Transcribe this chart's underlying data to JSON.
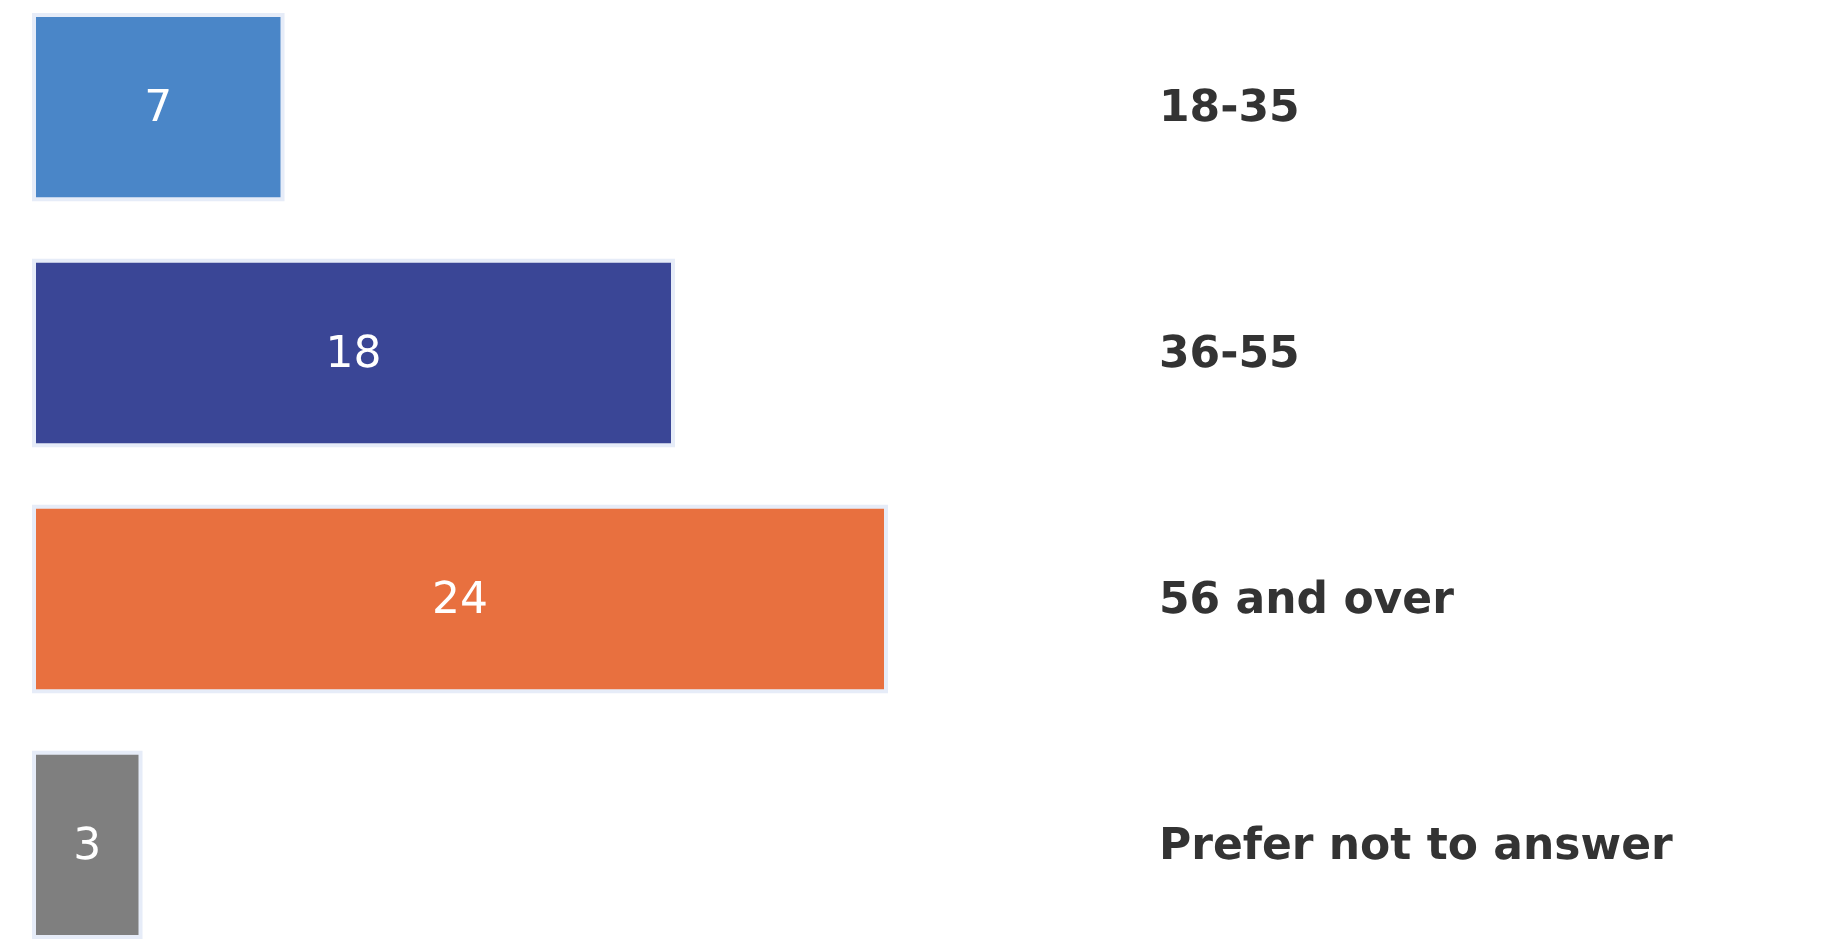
{
  "chart_data": {
    "type": "bar",
    "orientation": "horizontal",
    "categories": [
      "18-35",
      "36-55",
      "56 and over",
      "Prefer not to answer"
    ],
    "values": [
      7,
      18,
      24,
      3
    ],
    "colors": [
      "#4a86c8",
      "#3a4696",
      "#e8703f",
      "#7f7f7f"
    ],
    "data_labels": true,
    "grid": false
  }
}
